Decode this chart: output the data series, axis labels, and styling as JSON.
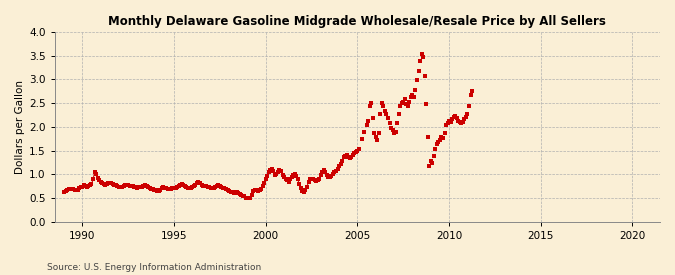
{
  "title": "Monthly Delaware Gasoline Midgrade Wholesale/Resale Price by All Sellers",
  "ylabel": "Dollars per Gallon",
  "source": "Source: U.S. Energy Information Administration",
  "background_color": "#faefd6",
  "line_color": "#cc0000",
  "marker": "s",
  "markersize": 2.2,
  "linewidth": 0.7,
  "xlim": [
    1988.5,
    2021.5
  ],
  "ylim": [
    0.0,
    4.0
  ],
  "yticks": [
    0.0,
    0.5,
    1.0,
    1.5,
    2.0,
    2.5,
    3.0,
    3.5,
    4.0
  ],
  "xticks": [
    1990,
    1995,
    2000,
    2005,
    2010,
    2015,
    2020
  ],
  "segments": [
    {
      "connected": true,
      "data": [
        [
          1989.0,
          0.63
        ],
        [
          1989.083,
          0.65
        ],
        [
          1989.167,
          0.66
        ],
        [
          1989.25,
          0.68
        ],
        [
          1989.333,
          0.7
        ],
        [
          1989.417,
          0.7
        ],
        [
          1989.5,
          0.68
        ],
        [
          1989.583,
          0.67
        ],
        [
          1989.667,
          0.66
        ],
        [
          1989.75,
          0.67
        ],
        [
          1989.833,
          0.71
        ],
        [
          1989.917,
          0.73
        ],
        [
          1990.0,
          0.74
        ],
        [
          1990.083,
          0.77
        ],
        [
          1990.167,
          0.75
        ],
        [
          1990.25,
          0.73
        ],
        [
          1990.333,
          0.75
        ],
        [
          1990.417,
          0.77
        ],
        [
          1990.5,
          0.79
        ],
        [
          1990.583,
          0.89
        ],
        [
          1990.667,
          1.04
        ],
        [
          1990.75,
          1.0
        ],
        [
          1990.833,
          0.93
        ],
        [
          1990.917,
          0.88
        ],
        [
          1991.0,
          0.84
        ],
        [
          1991.083,
          0.81
        ],
        [
          1991.167,
          0.79
        ],
        [
          1991.25,
          0.78
        ],
        [
          1991.333,
          0.79
        ],
        [
          1991.417,
          0.81
        ],
        [
          1991.5,
          0.82
        ],
        [
          1991.583,
          0.81
        ],
        [
          1991.667,
          0.79
        ],
        [
          1991.75,
          0.78
        ],
        [
          1991.833,
          0.77
        ],
        [
          1991.917,
          0.75
        ],
        [
          1992.0,
          0.74
        ],
        [
          1992.083,
          0.73
        ],
        [
          1992.167,
          0.73
        ],
        [
          1992.25,
          0.75
        ],
        [
          1992.333,
          0.77
        ],
        [
          1992.417,
          0.78
        ],
        [
          1992.5,
          0.77
        ],
        [
          1992.583,
          0.76
        ],
        [
          1992.667,
          0.75
        ],
        [
          1992.75,
          0.75
        ],
        [
          1992.833,
          0.74
        ],
        [
          1992.917,
          0.73
        ],
        [
          1993.0,
          0.72
        ],
        [
          1993.083,
          0.73
        ],
        [
          1993.167,
          0.73
        ],
        [
          1993.25,
          0.74
        ],
        [
          1993.333,
          0.76
        ],
        [
          1993.417,
          0.77
        ],
        [
          1993.5,
          0.75
        ],
        [
          1993.583,
          0.73
        ],
        [
          1993.667,
          0.71
        ],
        [
          1993.75,
          0.7
        ],
        [
          1993.833,
          0.68
        ],
        [
          1993.917,
          0.67
        ],
        [
          1994.0,
          0.66
        ],
        [
          1994.083,
          0.65
        ],
        [
          1994.167,
          0.65
        ],
        [
          1994.25,
          0.67
        ],
        [
          1994.333,
          0.71
        ],
        [
          1994.417,
          0.73
        ],
        [
          1994.5,
          0.72
        ],
        [
          1994.583,
          0.71
        ],
        [
          1994.667,
          0.69
        ],
        [
          1994.75,
          0.69
        ],
        [
          1994.833,
          0.7
        ],
        [
          1994.917,
          0.71
        ],
        [
          1995.0,
          0.71
        ],
        [
          1995.083,
          0.72
        ],
        [
          1995.167,
          0.74
        ],
        [
          1995.25,
          0.76
        ],
        [
          1995.333,
          0.78
        ],
        [
          1995.417,
          0.79
        ],
        [
          1995.5,
          0.77
        ],
        [
          1995.583,
          0.75
        ],
        [
          1995.667,
          0.73
        ],
        [
          1995.75,
          0.72
        ],
        [
          1995.833,
          0.71
        ],
        [
          1995.917,
          0.71
        ],
        [
          1996.0,
          0.73
        ],
        [
          1996.083,
          0.75
        ],
        [
          1996.167,
          0.78
        ],
        [
          1996.25,
          0.81
        ],
        [
          1996.333,
          0.83
        ],
        [
          1996.417,
          0.81
        ],
        [
          1996.5,
          0.78
        ],
        [
          1996.583,
          0.76
        ],
        [
          1996.667,
          0.75
        ],
        [
          1996.75,
          0.75
        ],
        [
          1996.833,
          0.74
        ],
        [
          1996.917,
          0.73
        ],
        [
          1997.0,
          0.72
        ],
        [
          1997.083,
          0.71
        ],
        [
          1997.167,
          0.72
        ],
        [
          1997.25,
          0.74
        ],
        [
          1997.333,
          0.76
        ],
        [
          1997.417,
          0.77
        ],
        [
          1997.5,
          0.75
        ],
        [
          1997.583,
          0.73
        ],
        [
          1997.667,
          0.72
        ],
        [
          1997.75,
          0.71
        ],
        [
          1997.833,
          0.69
        ],
        [
          1997.917,
          0.67
        ],
        [
          1998.0,
          0.65
        ],
        [
          1998.083,
          0.63
        ],
        [
          1998.167,
          0.62
        ],
        [
          1998.25,
          0.61
        ],
        [
          1998.333,
          0.62
        ],
        [
          1998.417,
          0.62
        ],
        [
          1998.5,
          0.6
        ],
        [
          1998.583,
          0.58
        ],
        [
          1998.667,
          0.56
        ],
        [
          1998.75,
          0.55
        ],
        [
          1998.833,
          0.54
        ],
        [
          1998.917,
          0.51
        ],
        [
          1999.0,
          0.49
        ],
        [
          1999.083,
          0.49
        ],
        [
          1999.167,
          0.51
        ],
        [
          1999.25,
          0.56
        ],
        [
          1999.333,
          0.64
        ],
        [
          1999.417,
          0.67
        ],
        [
          1999.5,
          0.66
        ],
        [
          1999.583,
          0.65
        ],
        [
          1999.667,
          0.66
        ],
        [
          1999.75,
          0.69
        ],
        [
          1999.833,
          0.75
        ],
        [
          1999.917,
          0.81
        ],
        [
          2000.0,
          0.89
        ],
        [
          2000.083,
          0.97
        ],
        [
          2000.167,
          1.04
        ],
        [
          2000.25,
          1.09
        ],
        [
          2000.333,
          1.11
        ],
        [
          2000.417,
          1.07
        ],
        [
          2000.5,
          0.99
        ],
        [
          2000.583,
          1.01
        ],
        [
          2000.667,
          1.04
        ],
        [
          2000.75,
          1.09
        ],
        [
          2000.833,
          1.07
        ],
        [
          2000.917,
          0.99
        ],
        [
          2001.0,
          0.94
        ],
        [
          2001.083,
          0.91
        ],
        [
          2001.167,
          0.87
        ],
        [
          2001.25,
          0.84
        ],
        [
          2001.333,
          0.89
        ],
        [
          2001.417,
          0.94
        ],
        [
          2001.5,
          0.99
        ],
        [
          2001.583,
          1.01
        ],
        [
          2001.667,
          0.97
        ],
        [
          2001.75,
          0.89
        ],
        [
          2001.833,
          0.79
        ],
        [
          2001.917,
          0.71
        ],
        [
          2002.0,
          0.64
        ],
        [
          2002.083,
          0.62
        ],
        [
          2002.167,
          0.67
        ],
        [
          2002.25,
          0.74
        ],
        [
          2002.333,
          0.84
        ],
        [
          2002.417,
          0.89
        ],
        [
          2002.5,
          0.91
        ],
        [
          2002.583,
          0.89
        ],
        [
          2002.667,
          0.87
        ],
        [
          2002.75,
          0.86
        ],
        [
          2002.833,
          0.87
        ],
        [
          2002.917,
          0.91
        ],
        [
          2003.0,
          0.99
        ],
        [
          2003.083,
          1.04
        ],
        [
          2003.167,
          1.09
        ],
        [
          2003.25,
          1.04
        ],
        [
          2003.333,
          0.99
        ],
        [
          2003.417,
          0.94
        ],
        [
          2003.5,
          0.94
        ],
        [
          2003.583,
          0.97
        ],
        [
          2003.667,
          1.01
        ],
        [
          2003.75,
          1.04
        ],
        [
          2003.833,
          1.07
        ],
        [
          2003.917,
          1.11
        ],
        [
          2004.0,
          1.17
        ],
        [
          2004.083,
          1.21
        ],
        [
          2004.167,
          1.29
        ],
        [
          2004.25,
          1.37
        ],
        [
          2004.333,
          1.39
        ],
        [
          2004.417,
          1.41
        ],
        [
          2004.5,
          1.37
        ],
        [
          2004.583,
          1.34
        ],
        [
          2004.667,
          1.37
        ],
        [
          2004.75,
          1.41
        ],
        [
          2004.833,
          1.44
        ],
        [
          2004.917,
          1.47
        ]
      ]
    },
    {
      "connected": false,
      "data": [
        [
          2005.0,
          1.49
        ],
        [
          2005.083,
          1.54
        ],
        [
          2005.25,
          1.74
        ],
        [
          2005.333,
          1.89
        ],
        [
          2005.5,
          2.04
        ],
        [
          2005.583,
          2.12
        ],
        [
          2005.667,
          2.44
        ],
        [
          2005.75,
          2.5
        ],
        [
          2005.833,
          2.18
        ],
        [
          2005.917,
          1.88
        ],
        [
          2006.0,
          1.78
        ],
        [
          2006.083,
          1.73
        ],
        [
          2006.167,
          1.88
        ],
        [
          2006.25,
          2.28
        ],
        [
          2006.333,
          2.5
        ],
        [
          2006.417,
          2.44
        ],
        [
          2006.5,
          2.33
        ],
        [
          2006.583,
          2.28
        ],
        [
          2006.667,
          2.18
        ],
        [
          2006.75,
          2.08
        ],
        [
          2006.833,
          1.98
        ],
        [
          2006.917,
          1.93
        ],
        [
          2007.0,
          1.88
        ],
        [
          2007.083,
          1.9
        ],
        [
          2007.167,
          2.08
        ],
        [
          2007.25,
          2.28
        ],
        [
          2007.333,
          2.44
        ],
        [
          2007.417,
          2.5
        ],
        [
          2007.5,
          2.53
        ],
        [
          2007.583,
          2.58
        ],
        [
          2007.667,
          2.48
        ],
        [
          2007.75,
          2.44
        ],
        [
          2007.833,
          2.53
        ],
        [
          2007.917,
          2.63
        ],
        [
          2008.0,
          2.68
        ],
        [
          2008.083,
          2.63
        ],
        [
          2008.167,
          2.78
        ],
        [
          2008.25,
          2.98
        ],
        [
          2008.333,
          3.18
        ],
        [
          2008.417,
          3.38
        ],
        [
          2008.5,
          3.53
        ],
        [
          2008.583,
          3.48
        ],
        [
          2008.667,
          3.08
        ],
        [
          2008.75,
          2.48
        ],
        [
          2008.833,
          1.78
        ],
        [
          2008.917,
          1.18
        ],
        [
          2009.0,
          1.28
        ],
        [
          2009.083,
          1.23
        ],
        [
          2009.167,
          1.38
        ],
        [
          2009.25,
          1.53
        ],
        [
          2009.333,
          1.63
        ],
        [
          2009.417,
          1.68
        ],
        [
          2009.5,
          1.73
        ],
        [
          2009.583,
          1.78
        ],
        [
          2009.667,
          1.76
        ],
        [
          2009.75,
          1.88
        ],
        [
          2009.833,
          2.03
        ],
        [
          2009.917,
          2.08
        ],
        [
          2010.0,
          2.13
        ],
        [
          2010.083,
          2.1
        ],
        [
          2010.167,
          2.16
        ],
        [
          2010.25,
          2.2
        ],
        [
          2010.333,
          2.23
        ],
        [
          2010.417,
          2.18
        ],
        [
          2010.5,
          2.13
        ],
        [
          2010.583,
          2.1
        ],
        [
          2010.667,
          2.08
        ],
        [
          2010.75,
          2.1
        ],
        [
          2010.833,
          2.16
        ],
        [
          2010.917,
          2.2
        ],
        [
          2011.0,
          2.28
        ],
        [
          2011.083,
          2.43
        ],
        [
          2011.167,
          2.68
        ],
        [
          2011.25,
          2.75
        ]
      ]
    }
  ]
}
